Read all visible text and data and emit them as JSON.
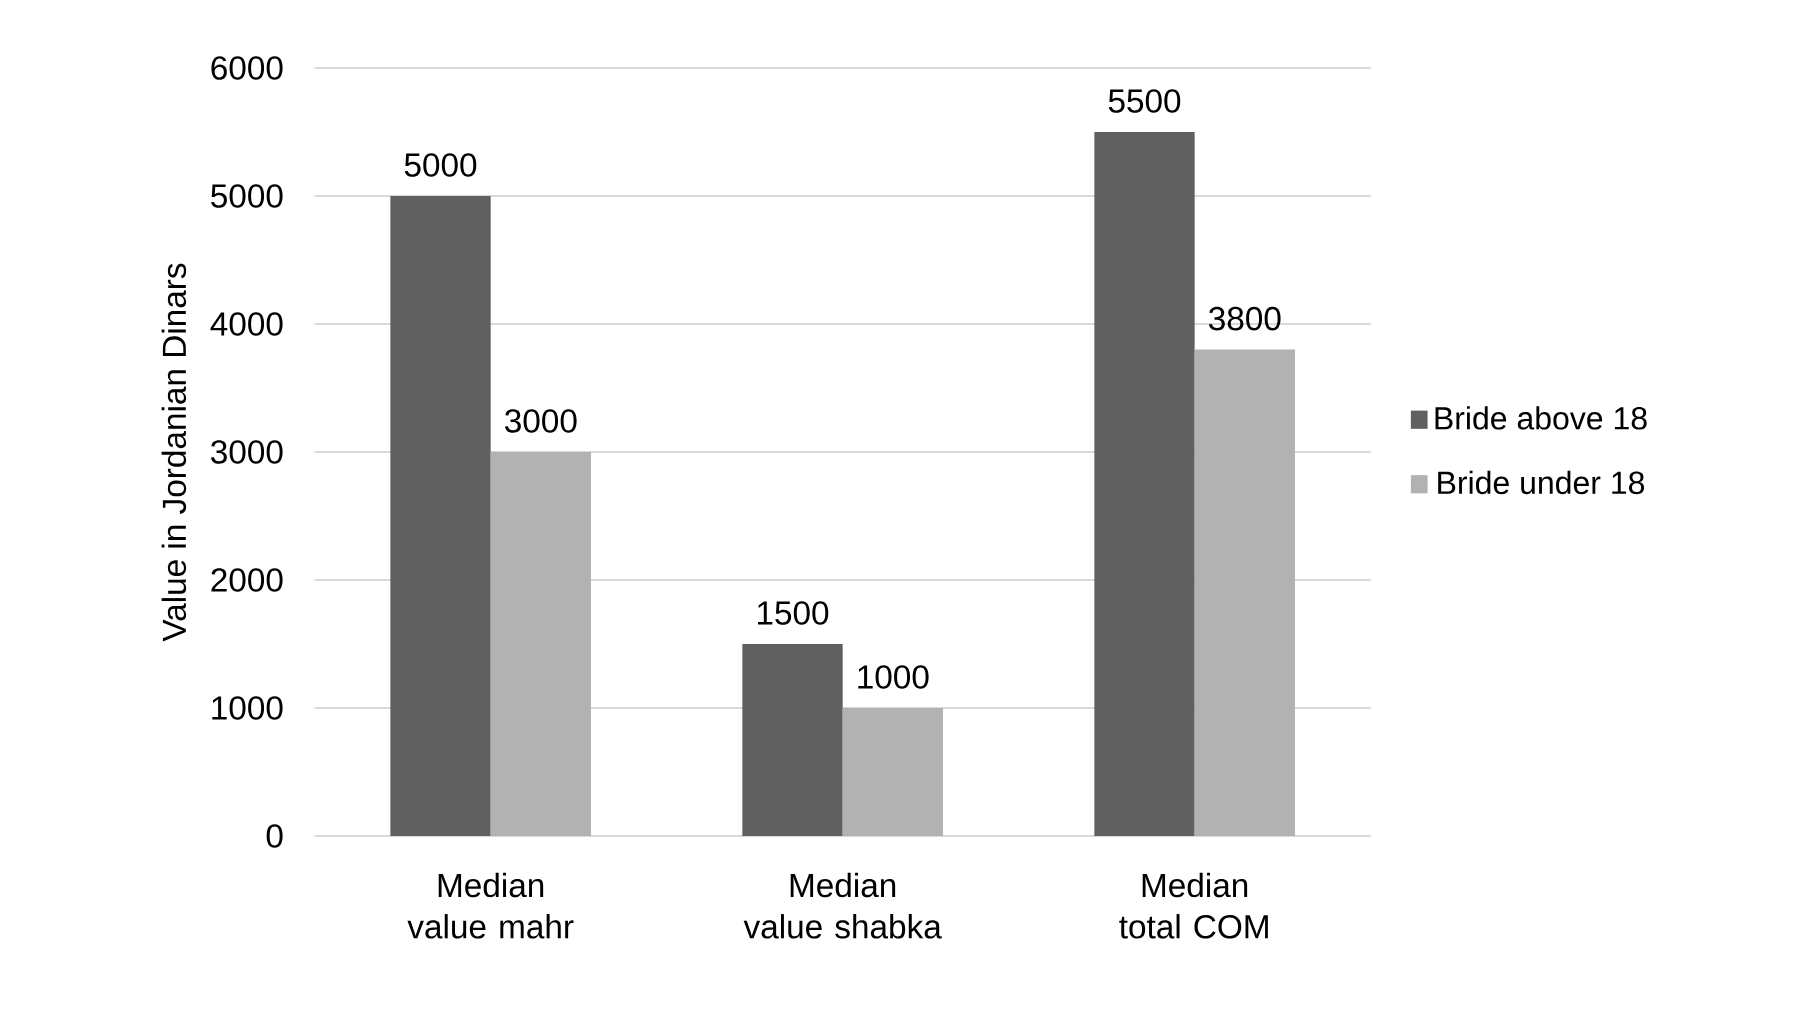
{
  "chart_data": {
    "type": "bar",
    "ylabel": "Value in Jordanian Dinars",
    "categories": [
      "Median value mahr",
      "Median value shabka",
      "Median total COM"
    ],
    "series": [
      {
        "name": "Bride above 18",
        "color": "#606060",
        "values": [
          5000,
          1500,
          5500
        ]
      },
      {
        "name": "Bride under 18",
        "color": "#b2b2b2",
        "values": [
          3000,
          1000,
          3800
        ]
      }
    ],
    "ylim": [
      0,
      6000
    ],
    "yticks": [
      0,
      1000,
      2000,
      3000,
      4000,
      5000,
      6000
    ],
    "grid": "y",
    "legend": "right",
    "data_labels": true
  }
}
